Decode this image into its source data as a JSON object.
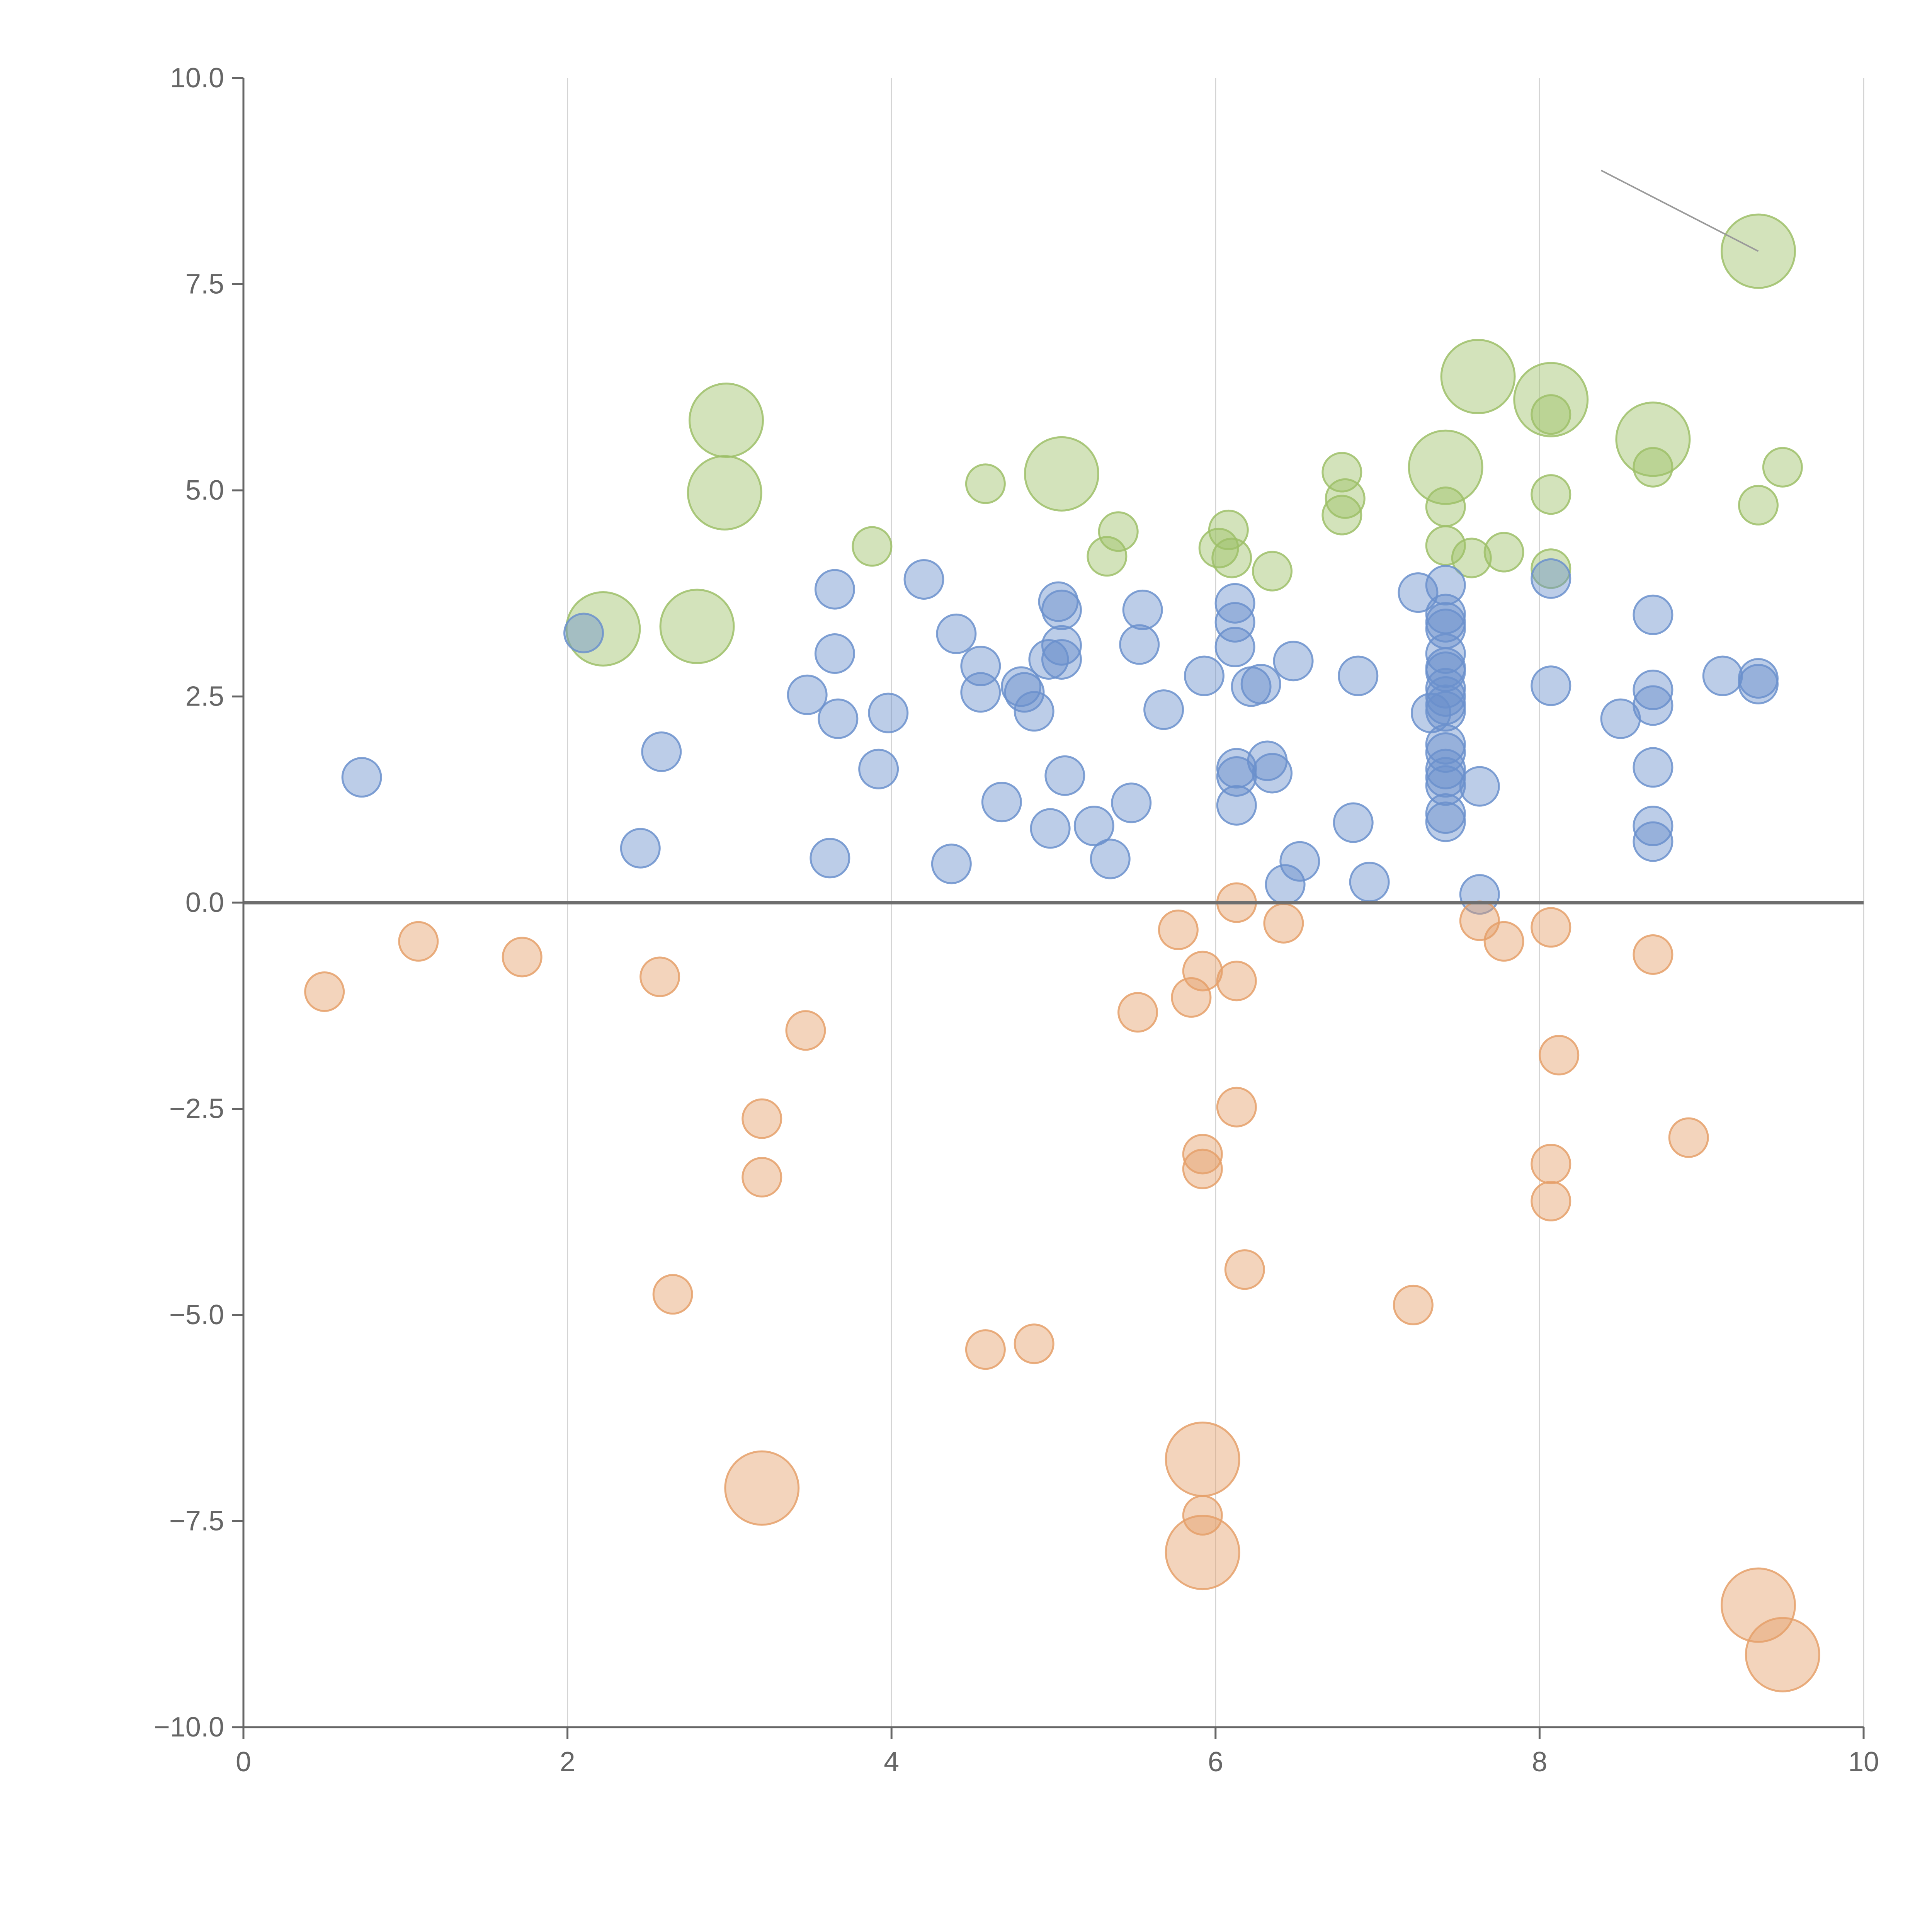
{
  "chart_data": {
    "type": "scatter",
    "variant": "bubble",
    "title": "",
    "xlabel": "",
    "ylabel": "",
    "xlim": [
      0,
      10
    ],
    "ylim": [
      -10,
      10
    ],
    "x_ticks": [
      0,
      2,
      4,
      6,
      8,
      10
    ],
    "x_tick_labels": [
      "0",
      "2",
      "4",
      "6",
      "8",
      "10"
    ],
    "y_ticks": [
      10,
      7.5,
      5,
      2.5,
      0,
      -2.5,
      -5,
      -7.5,
      -10
    ],
    "y_tick_labels": [
      "10.0",
      "7.5",
      "5.0",
      "2.5",
      "0.0",
      "−2.5",
      "−5.0",
      "−7.5",
      "−10.0"
    ],
    "vertical_grid": true,
    "horizontal_grid": false,
    "zero_line": true,
    "legend": "none",
    "series": [
      {
        "name": "green",
        "color": "#9dc069",
        "points": [
          [
            2.22,
            3.32,
            2
          ],
          [
            2.8,
            3.35,
            2
          ],
          [
            2.97,
            4.97,
            2
          ],
          [
            2.98,
            5.85,
            2
          ],
          [
            3.88,
            4.32,
            1
          ],
          [
            4.58,
            5.08,
            1
          ],
          [
            5.05,
            5.2,
            2
          ],
          [
            5.33,
            4.2,
            1
          ],
          [
            5.4,
            4.5,
            1
          ],
          [
            6.02,
            4.3,
            1
          ],
          [
            6.08,
            4.52,
            1
          ],
          [
            6.1,
            4.18,
            1
          ],
          [
            6.35,
            4.02,
            1
          ],
          [
            6.78,
            5.22,
            1
          ],
          [
            6.8,
            4.9,
            1
          ],
          [
            6.78,
            4.7,
            1
          ],
          [
            7.42,
            5.28,
            2
          ],
          [
            7.42,
            4.8,
            1
          ],
          [
            7.42,
            4.33,
            1
          ],
          [
            7.62,
            6.38,
            2
          ],
          [
            7.58,
            4.18,
            1
          ],
          [
            7.78,
            4.25,
            1
          ],
          [
            8.07,
            6.1,
            2
          ],
          [
            8.07,
            5.92,
            1
          ],
          [
            8.07,
            4.95,
            1
          ],
          [
            8.07,
            4.05,
            1
          ],
          [
            8.7,
            5.62,
            2
          ],
          [
            8.7,
            5.28,
            1
          ],
          [
            9.35,
            7.9,
            2
          ],
          [
            9.35,
            4.82,
            1
          ],
          [
            9.5,
            5.28,
            1
          ]
        ]
      },
      {
        "name": "blue",
        "color": "#6b91cc",
        "points": [
          [
            0.73,
            1.52,
            1
          ],
          [
            2.1,
            3.27,
            1
          ],
          [
            2.45,
            0.66,
            1
          ],
          [
            2.58,
            1.83,
            1
          ],
          [
            3.48,
            2.52,
            1
          ],
          [
            3.62,
            0.54,
            1
          ],
          [
            3.65,
            3.8,
            1
          ],
          [
            3.65,
            3.02,
            1
          ],
          [
            3.67,
            2.23,
            1
          ],
          [
            3.92,
            1.62,
            1
          ],
          [
            3.98,
            2.3,
            1
          ],
          [
            4.2,
            3.92,
            1
          ],
          [
            4.37,
            0.47,
            1
          ],
          [
            4.4,
            3.26,
            1
          ],
          [
            4.55,
            2.87,
            1
          ],
          [
            4.55,
            2.55,
            1
          ],
          [
            4.68,
            1.22,
            1
          ],
          [
            4.8,
            2.62,
            1
          ],
          [
            4.82,
            2.55,
            1
          ],
          [
            4.88,
            2.32,
            1
          ],
          [
            4.97,
            2.95,
            1
          ],
          [
            4.98,
            0.9,
            1
          ],
          [
            5.03,
            3.65,
            1
          ],
          [
            5.05,
            3.55,
            1
          ],
          [
            5.05,
            3.12,
            1
          ],
          [
            5.05,
            2.95,
            1
          ],
          [
            5.07,
            1.54,
            1
          ],
          [
            5.25,
            0.93,
            1
          ],
          [
            5.35,
            0.53,
            1
          ],
          [
            5.48,
            1.21,
            1
          ],
          [
            5.53,
            3.13,
            1
          ],
          [
            5.55,
            3.55,
            1
          ],
          [
            5.68,
            2.34,
            1
          ],
          [
            5.93,
            2.75,
            1
          ],
          [
            6.12,
            3.63,
            1
          ],
          [
            6.12,
            3.4,
            1
          ],
          [
            6.12,
            3.1,
            1
          ],
          [
            6.13,
            1.63,
            1
          ],
          [
            6.13,
            1.53,
            1
          ],
          [
            6.13,
            1.18,
            1
          ],
          [
            6.22,
            2.62,
            1
          ],
          [
            6.28,
            2.65,
            1
          ],
          [
            6.32,
            1.72,
            1
          ],
          [
            6.35,
            1.57,
            1
          ],
          [
            6.43,
            0.22,
            1
          ],
          [
            6.48,
            2.93,
            1
          ],
          [
            6.52,
            0.5,
            1
          ],
          [
            6.85,
            0.97,
            1
          ],
          [
            6.88,
            2.75,
            1
          ],
          [
            6.95,
            0.25,
            1
          ],
          [
            7.25,
            3.76,
            1
          ],
          [
            7.33,
            2.3,
            1
          ],
          [
            7.42,
            3.85,
            1
          ],
          [
            7.42,
            3.5,
            1
          ],
          [
            7.42,
            3.4,
            1
          ],
          [
            7.42,
            3.32,
            1
          ],
          [
            7.42,
            3.02,
            1
          ],
          [
            7.42,
            2.85,
            1
          ],
          [
            7.42,
            2.8,
            1
          ],
          [
            7.42,
            2.6,
            1
          ],
          [
            7.42,
            2.5,
            1
          ],
          [
            7.42,
            2.4,
            1
          ],
          [
            7.42,
            2.32,
            1
          ],
          [
            7.42,
            1.92,
            1
          ],
          [
            7.42,
            1.82,
            1
          ],
          [
            7.42,
            1.62,
            1
          ],
          [
            7.42,
            1.52,
            1
          ],
          [
            7.42,
            1.42,
            1
          ],
          [
            7.42,
            1.08,
            1
          ],
          [
            7.42,
            0.98,
            1
          ],
          [
            7.63,
            1.41,
            1
          ],
          [
            7.63,
            0.1,
            1
          ],
          [
            8.07,
            3.93,
            1
          ],
          [
            8.07,
            2.63,
            1
          ],
          [
            8.5,
            2.23,
            1
          ],
          [
            8.7,
            3.49,
            1
          ],
          [
            8.7,
            2.58,
            1
          ],
          [
            8.7,
            2.39,
            1
          ],
          [
            8.7,
            1.64,
            1
          ],
          [
            8.7,
            0.93,
            1
          ],
          [
            8.7,
            0.74,
            1
          ],
          [
            9.13,
            2.75,
            1
          ],
          [
            9.35,
            2.72,
            1
          ],
          [
            9.35,
            2.65,
            1
          ]
        ]
      },
      {
        "name": "orange",
        "color": "#e5a06a",
        "points": [
          [
            0.5,
            -1.08,
            1
          ],
          [
            1.08,
            -0.47,
            1
          ],
          [
            1.72,
            -0.66,
            1
          ],
          [
            2.57,
            -0.9,
            1
          ],
          [
            2.65,
            -4.75,
            1
          ],
          [
            3.2,
            -2.62,
            1
          ],
          [
            3.2,
            -3.33,
            1
          ],
          [
            3.2,
            -7.1,
            2
          ],
          [
            3.47,
            -1.55,
            1
          ],
          [
            4.58,
            -5.42,
            1
          ],
          [
            4.88,
            -5.35,
            1
          ],
          [
            5.52,
            -1.33,
            1
          ],
          [
            5.77,
            -0.33,
            1
          ],
          [
            5.85,
            -1.15,
            1
          ],
          [
            5.92,
            -0.83,
            1
          ],
          [
            5.92,
            -3.05,
            1
          ],
          [
            5.92,
            -3.23,
            1
          ],
          [
            5.92,
            -6.75,
            2
          ],
          [
            5.92,
            -7.43,
            1
          ],
          [
            5.92,
            -7.88,
            2
          ],
          [
            6.13,
            0.0,
            1
          ],
          [
            6.13,
            -0.95,
            1
          ],
          [
            6.13,
            -2.48,
            1
          ],
          [
            6.18,
            -4.45,
            1
          ],
          [
            6.42,
            -0.25,
            1
          ],
          [
            7.22,
            -4.88,
            1
          ],
          [
            7.63,
            -0.22,
            1
          ],
          [
            7.78,
            -0.47,
            1
          ],
          [
            8.07,
            -0.3,
            1
          ],
          [
            8.12,
            -1.85,
            1
          ],
          [
            8.07,
            -3.17,
            1
          ],
          [
            8.07,
            -3.62,
            1
          ],
          [
            8.7,
            -0.63,
            1
          ],
          [
            8.92,
            -2.85,
            1
          ],
          [
            9.35,
            -8.52,
            2
          ],
          [
            9.5,
            -9.12,
            2
          ]
        ]
      }
    ],
    "annotation_leader": {
      "from": [
        8.38,
        8.88
      ],
      "to": [
        9.35,
        7.9
      ]
    }
  }
}
